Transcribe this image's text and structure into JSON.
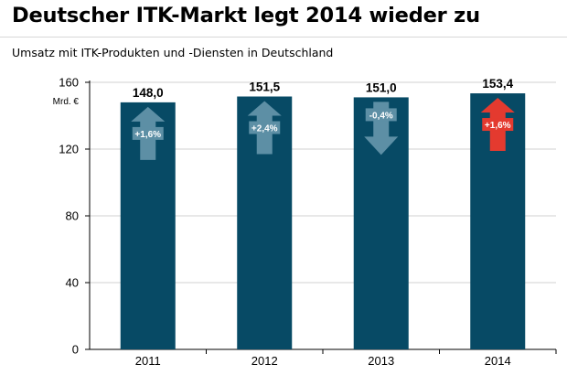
{
  "title": "Deutscher ITK-Markt legt 2014 wieder zu",
  "subtitle": "Umsatz mit ITK-Produkten und -Diensten in Deutschland",
  "chart_data": {
    "type": "bar",
    "title": "Deutscher ITK-Markt legt 2014 wieder zu",
    "subtitle": "Umsatz mit ITK-Produkten und -Diensten in Deutschland",
    "categories": [
      "2011",
      "2012",
      "2013",
      "2014"
    ],
    "values": [
      148.0,
      151.5,
      151.0,
      153.4
    ],
    "value_labels": [
      "148,0",
      "151,5",
      "151,0",
      "153,4"
    ],
    "changes": [
      {
        "label": "+1,6%",
        "direction": "up",
        "color": "#5d8fa5"
      },
      {
        "label": "+2,4%",
        "direction": "up",
        "color": "#5d8fa5"
      },
      {
        "label": "-0,4%",
        "direction": "down",
        "color": "#5d8fa5"
      },
      {
        "label": "+1,6%",
        "direction": "up",
        "color": "#e43a2f"
      }
    ],
    "ylabel": "Mrd. €",
    "ylim": [
      0,
      160
    ],
    "yticks": [
      0,
      40,
      80,
      120,
      160
    ],
    "grid": true,
    "legend": "none",
    "bar_color": "#074a65",
    "grid_color": "#d9d9d9"
  }
}
